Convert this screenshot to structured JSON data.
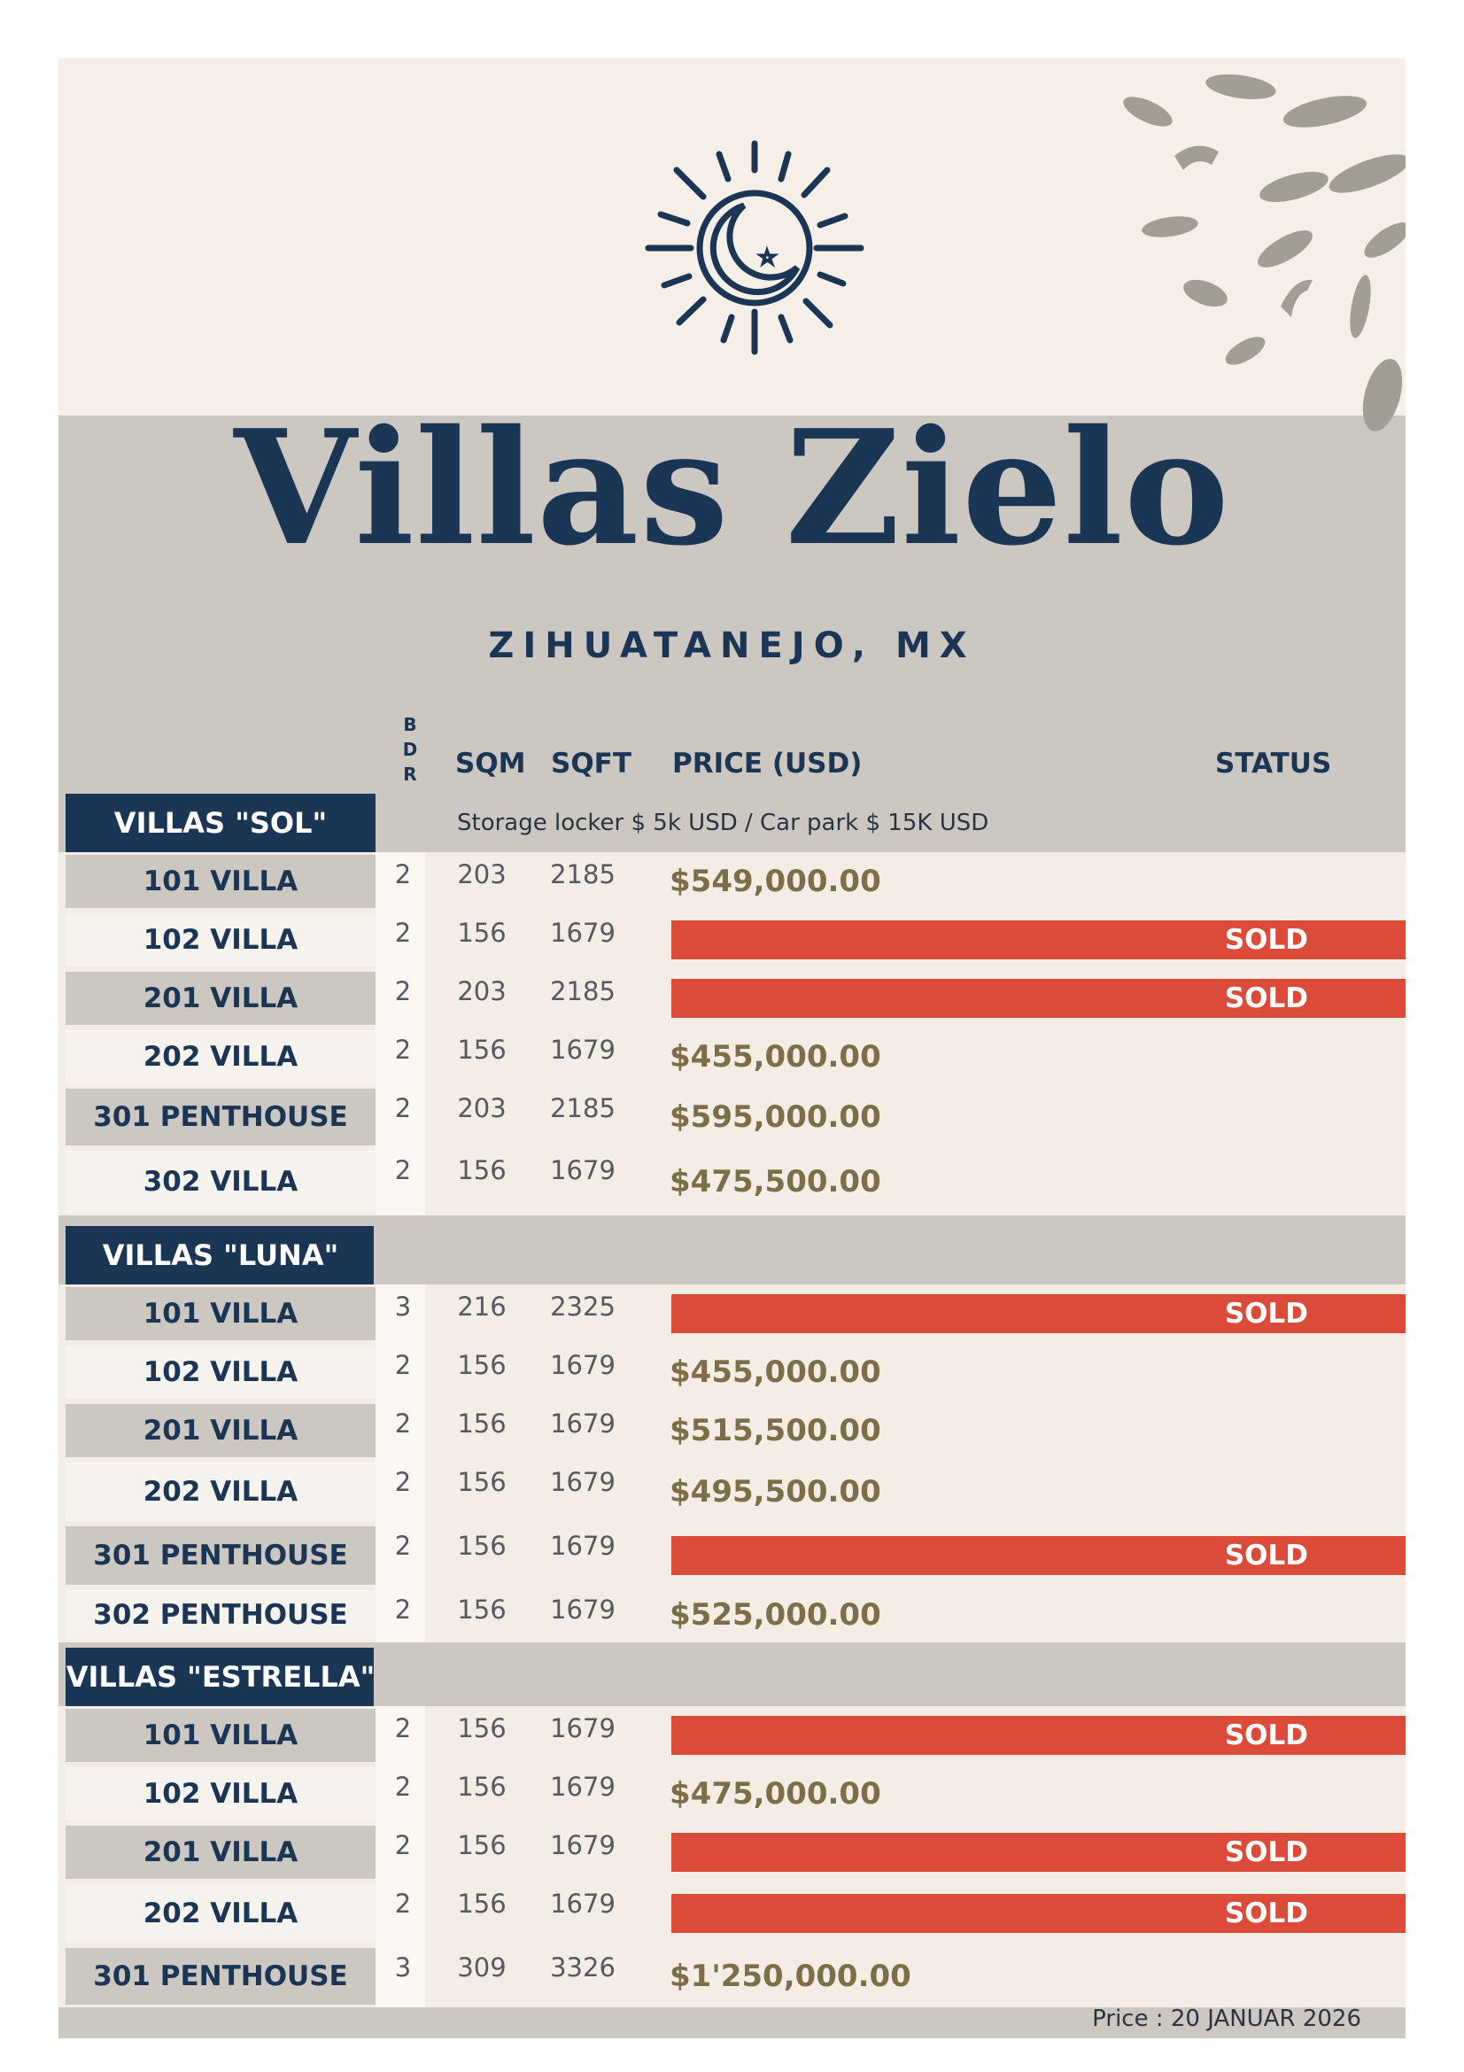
{
  "title": "Villas Zielo",
  "location": "ZIHUATANEJO, MX",
  "columns": {
    "bdr": [
      "B",
      "D",
      "R"
    ],
    "sqm": "SQM",
    "sqft": "SQFT",
    "price": "PRICE (USD)",
    "status": "STATUS"
  },
  "note": "Storage locker  $ 5k USD  / Car park $ 15K USD",
  "sold_label": "SOLD",
  "footer": "Price : 20 JANUAR 2026",
  "colors": {
    "navy": "#1b3555",
    "sold": "#dc4b39",
    "price": "#7d6e4a",
    "cream": "#f5efe8",
    "stone": "#ccc8c1"
  },
  "sections": [
    {
      "name": "VILLAS \"SOL\"",
      "units": [
        {
          "unit": "101 VILLA",
          "bdr": "2",
          "sqm": "203",
          "sqft": "2185",
          "price": "$549,000.00",
          "sold": false
        },
        {
          "unit": "102 VILLA",
          "bdr": "2",
          "sqm": "156",
          "sqft": "1679",
          "price": "",
          "sold": true
        },
        {
          "unit": "201 VILLA",
          "bdr": "2",
          "sqm": "203",
          "sqft": "2185",
          "price": "",
          "sold": true
        },
        {
          "unit": "202 VILLA",
          "bdr": "2",
          "sqm": "156",
          "sqft": "1679",
          "price": "$455,000.00",
          "sold": false
        },
        {
          "unit": "301 PENTHOUSE",
          "bdr": "2",
          "sqm": "203",
          "sqft": "2185",
          "price": "$595,000.00",
          "sold": false
        },
        {
          "unit": "302 VILLA",
          "bdr": "2",
          "sqm": "156",
          "sqft": "1679",
          "price": "$475,500.00",
          "sold": false
        }
      ]
    },
    {
      "name": "VILLAS \"LUNA\"",
      "units": [
        {
          "unit": "101 VILLA",
          "bdr": "3",
          "sqm": "216",
          "sqft": "2325",
          "price": "",
          "sold": true
        },
        {
          "unit": "102 VILLA",
          "bdr": "2",
          "sqm": "156",
          "sqft": "1679",
          "price": "$455,000.00",
          "sold": false
        },
        {
          "unit": "201 VILLA",
          "bdr": "2",
          "sqm": "156",
          "sqft": "1679",
          "price": "$515,500.00",
          "sold": false
        },
        {
          "unit": "202 VILLA",
          "bdr": "2",
          "sqm": "156",
          "sqft": "1679",
          "price": "$495,500.00",
          "sold": false
        },
        {
          "unit": "301 PENTHOUSE",
          "bdr": "2",
          "sqm": "156",
          "sqft": "1679",
          "price": "",
          "sold": true
        },
        {
          "unit": "302 PENTHOUSE",
          "bdr": "2",
          "sqm": "156",
          "sqft": "1679",
          "price": "$525,000.00",
          "sold": false
        }
      ]
    },
    {
      "name": "VILLAS \"ESTRELLA\"",
      "units": [
        {
          "unit": "101 VILLA",
          "bdr": "2",
          "sqm": "156",
          "sqft": "1679",
          "price": "",
          "sold": true
        },
        {
          "unit": "102 VILLA",
          "bdr": "2",
          "sqm": "156",
          "sqft": "1679",
          "price": "$475,000.00",
          "sold": false
        },
        {
          "unit": "201 VILLA",
          "bdr": "2",
          "sqm": "156",
          "sqft": "1679",
          "price": "",
          "sold": true
        },
        {
          "unit": "202 VILLA",
          "bdr": "2",
          "sqm": "156",
          "sqft": "1679",
          "price": "",
          "sold": true
        },
        {
          "unit": "301 PENTHOUSE",
          "bdr": "3",
          "sqm": "309",
          "sqft": "3326",
          "price": "$1'250,000.00",
          "sold": false
        }
      ]
    }
  ]
}
